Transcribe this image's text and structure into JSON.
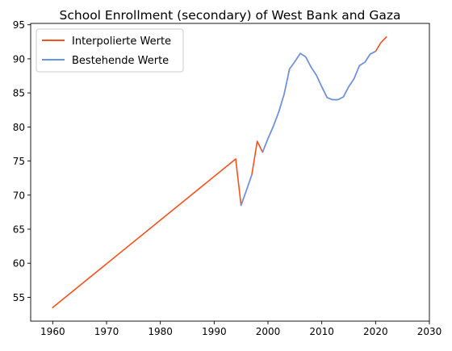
{
  "chart_data": {
    "type": "line",
    "title": "School Enrollment (secondary) of West Bank and Gaza",
    "xlabel": "",
    "ylabel": "",
    "xlim": [
      1955.9,
      2030
    ],
    "ylim": [
      51.5,
      95.2
    ],
    "xticks": [
      1960,
      1970,
      1980,
      1990,
      2000,
      2010,
      2020,
      2030
    ],
    "yticks": [
      55,
      60,
      65,
      70,
      75,
      80,
      85,
      90,
      95
    ],
    "grid": false,
    "legend": {
      "placement": "top-left"
    },
    "series": [
      {
        "name": "Interpolierte Werte",
        "color": "#f4511e",
        "points": [
          [
            1960,
            53.5
          ],
          [
            1994,
            75.3
          ],
          [
            1995,
            68.5
          ],
          [
            1996,
            70.7
          ],
          [
            1997,
            73.0
          ],
          [
            1998,
            77.9
          ],
          [
            1999,
            76.3
          ],
          [
            2000,
            78.3
          ],
          [
            2001,
            80.1
          ],
          [
            2002,
            82.2
          ],
          [
            2003,
            84.8
          ],
          [
            2004,
            88.5
          ],
          [
            2005,
            89.6
          ],
          [
            2006,
            90.8
          ],
          [
            2007,
            90.3
          ],
          [
            2008,
            88.8
          ],
          [
            2009,
            87.6
          ],
          [
            2010,
            85.9
          ],
          [
            2011,
            84.3
          ],
          [
            2012,
            84.0
          ],
          [
            2013,
            84.0
          ],
          [
            2014,
            84.4
          ],
          [
            2015,
            85.9
          ],
          [
            2016,
            87.1
          ],
          [
            2017,
            89.0
          ],
          [
            2018,
            89.5
          ],
          [
            2019,
            90.7
          ],
          [
            2020,
            91.1
          ],
          [
            2021,
            92.4
          ],
          [
            2022,
            93.2
          ]
        ]
      },
      {
        "name": "Bestehende Werte",
        "color": "#6495ed",
        "segments": [
          [
            [
              1995,
              68.5
            ],
            [
              1996,
              70.7
            ],
            [
              1997,
              73.0
            ]
          ],
          [
            [
              1999,
              76.3
            ],
            [
              2000,
              78.3
            ],
            [
              2001,
              80.1
            ],
            [
              2002,
              82.2
            ],
            [
              2003,
              84.8
            ],
            [
              2004,
              88.5
            ],
            [
              2005,
              89.6
            ],
            [
              2006,
              90.8
            ],
            [
              2007,
              90.3
            ],
            [
              2008,
              88.8
            ],
            [
              2009,
              87.6
            ],
            [
              2010,
              85.9
            ],
            [
              2011,
              84.3
            ],
            [
              2012,
              84.0
            ],
            [
              2013,
              84.0
            ],
            [
              2014,
              84.4
            ],
            [
              2015,
              85.9
            ],
            [
              2016,
              87.1
            ],
            [
              2017,
              89.0
            ],
            [
              2018,
              89.5
            ],
            [
              2019,
              90.7
            ],
            [
              2020,
              91.1
            ]
          ]
        ]
      }
    ]
  }
}
